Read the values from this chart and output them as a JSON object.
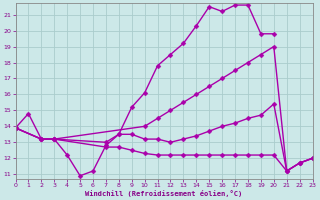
{
  "background_color": "#cce8e8",
  "grid_color": "#aacccc",
  "line_color": "#aa00aa",
  "marker": "D",
  "markersize": 2.5,
  "linewidth": 1.0,
  "xlim": [
    0,
    23
  ],
  "ylim": [
    10.7,
    21.7
  ],
  "xticks": [
    0,
    1,
    2,
    3,
    4,
    5,
    6,
    7,
    8,
    9,
    10,
    11,
    12,
    13,
    14,
    15,
    16,
    17,
    18,
    19,
    20,
    21,
    22,
    23
  ],
  "yticks": [
    11,
    12,
    13,
    14,
    15,
    16,
    17,
    18,
    19,
    20,
    21
  ],
  "xlabel": "Windchill (Refroidissement éolien,°C)",
  "curves": [
    {
      "x": [
        0,
        1,
        2,
        3,
        4,
        5,
        6,
        7,
        8,
        9,
        10,
        11,
        12,
        13,
        14,
        15,
        16,
        17,
        18,
        19,
        20
      ],
      "y": [
        13.9,
        14.8,
        13.2,
        13.2,
        12.2,
        10.9,
        11.2,
        12.8,
        13.5,
        15.2,
        16.1,
        17.8,
        18.5,
        19.2,
        20.3,
        21.5,
        21.2,
        21.6,
        21.6,
        19.8,
        19.8
      ]
    },
    {
      "x": [
        0,
        2,
        3,
        10,
        11,
        12,
        13,
        14,
        15,
        16,
        17,
        18,
        19,
        20,
        21,
        22,
        23
      ],
      "y": [
        13.9,
        13.2,
        13.2,
        14.0,
        14.5,
        15.0,
        15.5,
        16.0,
        16.5,
        17.0,
        17.5,
        18.0,
        18.5,
        19.0,
        11.2,
        11.7,
        12.0
      ]
    },
    {
      "x": [
        0,
        2,
        3,
        7,
        8,
        9,
        10,
        11,
        12,
        13,
        14,
        15,
        16,
        17,
        18,
        19,
        20,
        21,
        22,
        23
      ],
      "y": [
        13.9,
        13.2,
        13.2,
        13.0,
        13.5,
        13.5,
        13.2,
        13.2,
        13.0,
        13.2,
        13.4,
        13.7,
        14.0,
        14.2,
        14.5,
        14.7,
        15.4,
        11.2,
        11.7,
        12.0
      ]
    },
    {
      "x": [
        0,
        2,
        3,
        7,
        8,
        9,
        10,
        11,
        12,
        13,
        14,
        15,
        16,
        17,
        18,
        19,
        20,
        21,
        22,
        23
      ],
      "y": [
        13.9,
        13.2,
        13.2,
        12.7,
        12.7,
        12.5,
        12.3,
        12.2,
        12.2,
        12.2,
        12.2,
        12.2,
        12.2,
        12.2,
        12.2,
        12.2,
        12.2,
        11.2,
        11.7,
        12.0
      ]
    }
  ]
}
